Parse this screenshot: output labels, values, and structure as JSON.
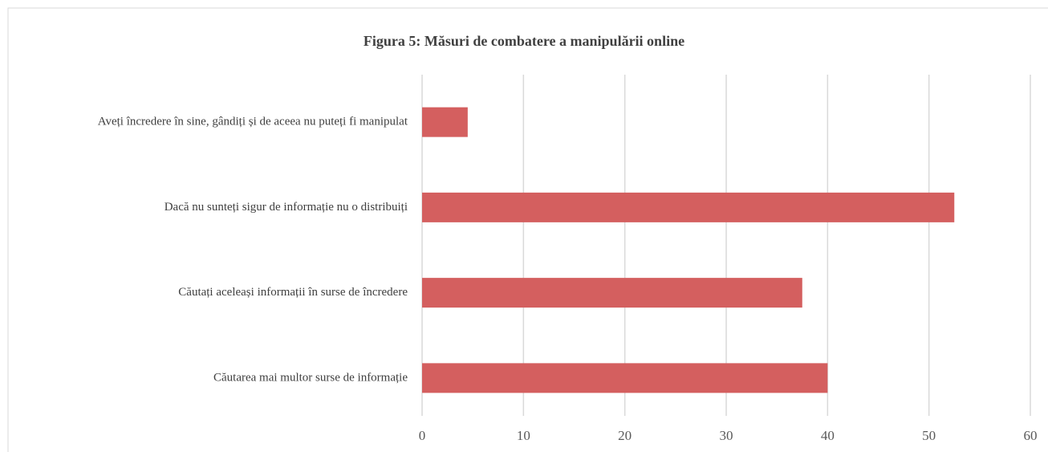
{
  "chart_data": {
    "type": "bar",
    "orientation": "horizontal",
    "title": "Figura 5: Măsuri de combatere a manipulării online",
    "categories": [
      "Aveți încredere în sine, gândiți și de aceea nu puteți fi manipulat",
      "Dacă nu sunteți sigur de informație nu o distribuiți",
      "Căutați aceleași informații în surse de încredere",
      "Căutarea mai multor surse de informație"
    ],
    "values": [
      4.5,
      52.5,
      37.5,
      40
    ],
    "color": "#d45f5f",
    "xlim": [
      0,
      60
    ],
    "xticks": [
      0,
      10,
      20,
      30,
      40,
      50,
      60
    ],
    "grid": true
  }
}
